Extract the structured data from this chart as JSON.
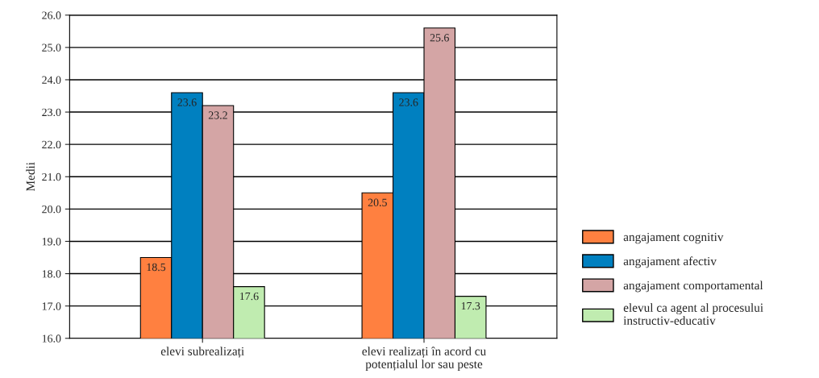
{
  "chart_data": {
    "type": "bar",
    "ylabel": "Medii",
    "categories": [
      "elevi subrealizați",
      "elevi realizați în acord cu\npotențialul lor sau peste"
    ],
    "series": [
      {
        "name": "angajament cognitiv",
        "color": "#ff8040",
        "values": [
          18.5,
          20.5
        ]
      },
      {
        "name": "angajament afectiv",
        "color": "#0080c0",
        "values": [
          23.6,
          23.6
        ]
      },
      {
        "name": "angajament comportamental",
        "color": "#d4a5a5",
        "values": [
          23.2,
          25.6
        ]
      },
      {
        "name": "elevul ca agent al procesului\ninstructiv-educativ",
        "color": "#c0ecb0",
        "values": [
          17.6,
          17.3
        ]
      }
    ],
    "ylim": [
      16,
      26
    ],
    "yticks": [
      {
        "value": 16,
        "label": "16.0"
      },
      {
        "value": 17,
        "label": "17.0"
      },
      {
        "value": 18,
        "label": "18.0"
      },
      {
        "value": 19,
        "label": "19.0"
      },
      {
        "value": 20,
        "label": "20.0"
      },
      {
        "value": 21,
        "label": "21.0"
      },
      {
        "value": 22,
        "label": "22.0"
      },
      {
        "value": 23,
        "label": "23.0"
      },
      {
        "value": 24,
        "label": "24.0"
      },
      {
        "value": 25,
        "label": "25.0"
      },
      {
        "value": 26,
        "label": "26.0"
      }
    ],
    "grid": "y",
    "data_labels": true,
    "legend": "right"
  }
}
